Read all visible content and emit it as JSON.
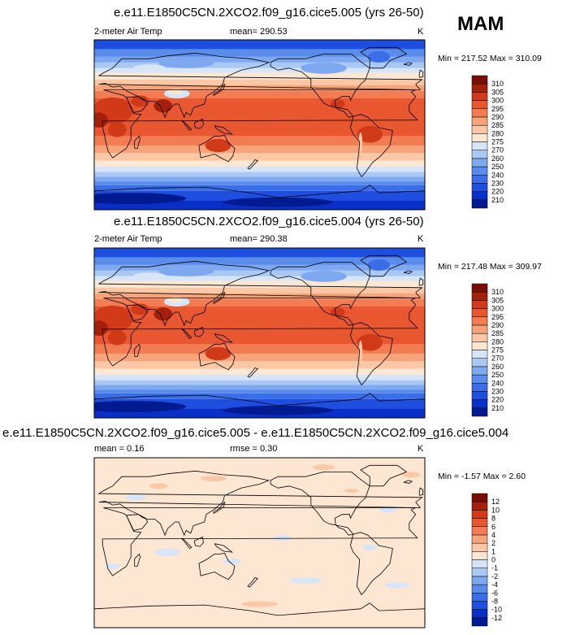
{
  "season": "MAM",
  "chart_data": [
    {
      "type": "heatmap",
      "title": "e.e11.E1850C5CN.2XCO2.f09_g16.cice5.005 (yrs 26-50)",
      "left_label": "2-meter Air Temp",
      "center_label": "mean= 290.53",
      "units": "K",
      "minmax": "Min = 217.52 Max = 310.09",
      "min": 217.52,
      "max": 310.09,
      "colorbar_levels": [
        "210",
        "220",
        "230",
        "240",
        "250",
        "260",
        "270",
        "275",
        "280",
        "285",
        "290",
        "295",
        "300",
        "305",
        "310"
      ],
      "colors": [
        "#001a8f",
        "#0a2fc8",
        "#1e4fe0",
        "#3a6ee8",
        "#5a8cec",
        "#7ea9f0",
        "#a9c8f4",
        "#d6e6f8",
        "#fde6d2",
        "#fbc7a4",
        "#f8a47a",
        "#f37c52",
        "#e8572f",
        "#d03a18",
        "#a3200b",
        "#7a0e05"
      ]
    },
    {
      "type": "heatmap",
      "title": "e.e11.E1850C5CN.2XCO2.f09_g16.cice5.004 (yrs 26-50)",
      "left_label": "2-meter Air Temp",
      "center_label": "mean= 290.38",
      "units": "K",
      "minmax": "Min = 217.48 Max = 309.97",
      "min": 217.48,
      "max": 309.97,
      "colorbar_levels": [
        "210",
        "220",
        "230",
        "240",
        "250",
        "260",
        "270",
        "275",
        "280",
        "285",
        "290",
        "295",
        "300",
        "305",
        "310"
      ],
      "colors": [
        "#001a8f",
        "#0a2fc8",
        "#1e4fe0",
        "#3a6ee8",
        "#5a8cec",
        "#7ea9f0",
        "#a9c8f4",
        "#d6e6f8",
        "#fde6d2",
        "#fbc7a4",
        "#f8a47a",
        "#f37c52",
        "#e8572f",
        "#d03a18",
        "#a3200b",
        "#7a0e05"
      ]
    },
    {
      "type": "heatmap",
      "title": "e.e11.E1850C5CN.2XCO2.f09_g16.cice5.005 - e.e11.E1850C5CN.2XCO2.f09_g16.cice5.004",
      "left_label": "mean =   0.16",
      "center_label": "rmse =   0.30",
      "units": "K",
      "minmax": "Min =  -1.57 Max =   2.60",
      "min": -1.57,
      "max": 2.6,
      "colorbar_levels": [
        "-12",
        "-10",
        "-8",
        "-6",
        "-4",
        "-2",
        "-1",
        "0",
        "1",
        "2",
        "4",
        "6",
        "8",
        "10",
        "12"
      ],
      "colors": [
        "#001a8f",
        "#0a2fc8",
        "#1e4fe0",
        "#3a6ee8",
        "#5a8cec",
        "#7ea9f0",
        "#a9c8f4",
        "#d6e6f8",
        "#fde6d2",
        "#fbc7a4",
        "#f8a47a",
        "#f37c52",
        "#e8572f",
        "#d03a18",
        "#a3200b",
        "#7a0e05"
      ]
    }
  ]
}
